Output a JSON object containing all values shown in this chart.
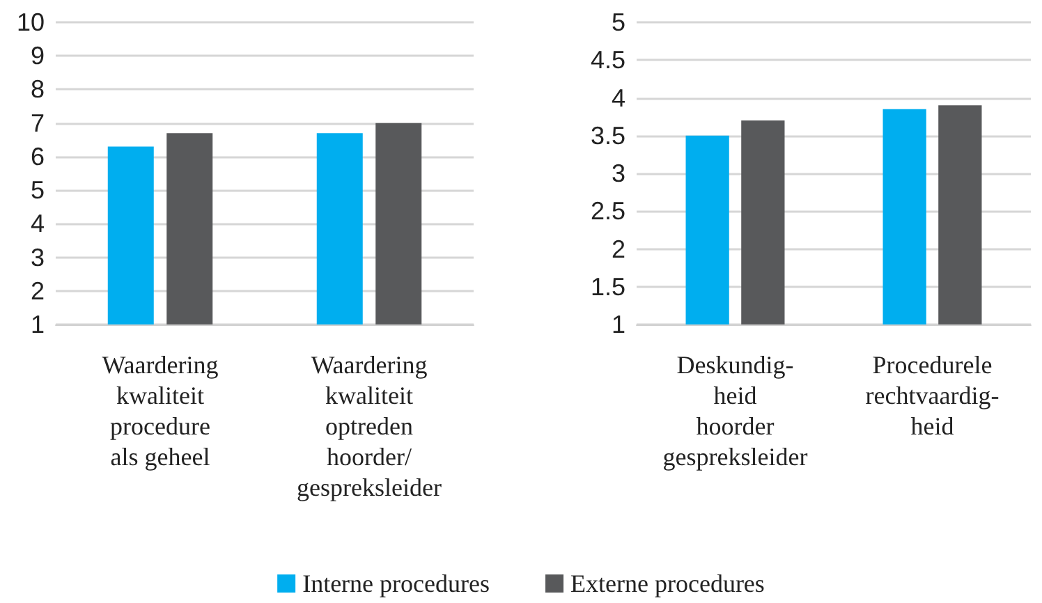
{
  "chart_data": [
    {
      "type": "bar",
      "categories": [
        "Waardering\nkwaliteit\nprocedure\nals geheel",
        "Waardering\nkwaliteit\noptreden\nhoorder/\ngespreksleider"
      ],
      "series": [
        {
          "name": "Interne procedures",
          "color": "#00aeef",
          "values": [
            6.3,
            6.7
          ]
        },
        {
          "name": "Externe procedures",
          "color": "#58595b",
          "values": [
            6.7,
            7.0
          ]
        }
      ],
      "ylim": [
        1,
        10
      ],
      "yticks": [
        1,
        2,
        3,
        4,
        5,
        6,
        7,
        8,
        9,
        10
      ],
      "grid": "y",
      "legend": "bottom"
    },
    {
      "type": "bar",
      "categories": [
        "Deskundig-\nheid\nhoorder\ngespreksleider",
        "Procedurele\nrechtvaardig-\nheid"
      ],
      "series": [
        {
          "color": "#00aeef",
          "values": [
            3.5,
            3.85
          ]
        },
        {
          "color": "#58595b",
          "values": [
            3.7,
            3.9
          ]
        }
      ],
      "ylim": [
        1,
        5
      ],
      "yticks": [
        1,
        1.5,
        2,
        2.5,
        3,
        3.5,
        4,
        4.5,
        5
      ],
      "grid": "y"
    }
  ]
}
